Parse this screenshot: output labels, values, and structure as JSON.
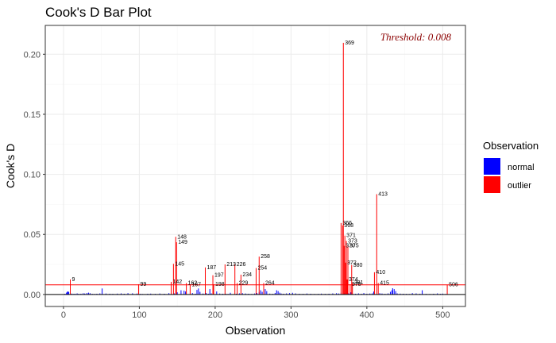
{
  "chart_data": {
    "type": "bar",
    "title": "Cook's D Bar Plot",
    "xlabel": "Observation",
    "ylabel": "Cook's D",
    "xlim": [
      -24,
      530
    ],
    "ylim": [
      -0.01,
      0.224
    ],
    "x_ticks": [
      0,
      100,
      200,
      300,
      400,
      500
    ],
    "y_ticks": [
      0.0,
      0.05,
      0.1,
      0.15,
      0.2
    ],
    "y_tick_labels": [
      "0.00",
      "0.05",
      "0.10",
      "0.15",
      "0.20"
    ],
    "grid": true,
    "threshold": {
      "value": 0.008,
      "label": "Threshold: 0.008",
      "color": "#ff0000",
      "label_color": "#8b0000"
    },
    "legend": {
      "title": "Observation",
      "position": "right",
      "entries": [
        {
          "label": "normal",
          "color": "#0000ff"
        },
        {
          "label": "outlier",
          "color": "#ff0000"
        }
      ]
    },
    "colors": {
      "normal": "#0000ff",
      "outlier": "#ff0000",
      "grid_major": "#ebebeb",
      "grid_minor": "#f5f5f5",
      "panel_border": "#333333"
    },
    "normal_bars": {
      "x": [
        2,
        4,
        5,
        6,
        7,
        11,
        13,
        15,
        18,
        20,
        23,
        26,
        28,
        31,
        33,
        35,
        38,
        41,
        44,
        48,
        51,
        56,
        61,
        65,
        71,
        76,
        80,
        85,
        91,
        97,
        101,
        104,
        111,
        115,
        121,
        127,
        133,
        139,
        146,
        150,
        155,
        159,
        161,
        170,
        174,
        176,
        178,
        180,
        184,
        188,
        191,
        193,
        195,
        202,
        206,
        210,
        214,
        217,
        220,
        228,
        232,
        236,
        240,
        244,
        248,
        252,
        255,
        258,
        260,
        262,
        266,
        268,
        272,
        276,
        279,
        281,
        283,
        285,
        287,
        290,
        294,
        298,
        302,
        306,
        311,
        316,
        321,
        326,
        331,
        336,
        340,
        345,
        350,
        355,
        360,
        363,
        366,
        371,
        376,
        379,
        385,
        389,
        393,
        396,
        400,
        404,
        407,
        409,
        417,
        420,
        424,
        428,
        431,
        433,
        434,
        436,
        438,
        440,
        444,
        448,
        452,
        456,
        460,
        465,
        470,
        473,
        478,
        483,
        488,
        493,
        497,
        500,
        504
      ],
      "values": [
        0.0006,
        0.0015,
        0.0022,
        0.0025,
        0.0021,
        0.0007,
        0.0004,
        0.0006,
        0.0009,
        0.0005,
        0.0006,
        0.001,
        0.0008,
        0.0012,
        0.0015,
        0.0011,
        0.0005,
        0.0004,
        0.0006,
        0.0009,
        0.005,
        0.0008,
        0.0006,
        0.0005,
        0.0007,
        0.0009,
        0.0006,
        0.0011,
        0.001,
        0.0008,
        0.0005,
        0.0004,
        0.0006,
        0.0007,
        0.0005,
        0.0008,
        0.0006,
        0.0011,
        0.0009,
        0.0018,
        0.0035,
        0.0032,
        0.0025,
        0.0012,
        0.0006,
        0.0038,
        0.005,
        0.0022,
        0.0008,
        0.0012,
        0.0006,
        0.0045,
        0.0009,
        0.0025,
        0.0008,
        0.0006,
        0.0005,
        0.0004,
        0.0014,
        0.0006,
        0.0009,
        0.0011,
        0.0008,
        0.0006,
        0.0004,
        0.0008,
        0.0012,
        0.0018,
        0.0035,
        0.0022,
        0.0045,
        0.0028,
        0.0007,
        0.0005,
        0.0012,
        0.0035,
        0.0028,
        0.0015,
        0.0008,
        0.0006,
        0.0009,
        0.0011,
        0.0014,
        0.0009,
        0.0006,
        0.0005,
        0.0008,
        0.0006,
        0.0004,
        0.0005,
        0.0007,
        0.0005,
        0.0006,
        0.0009,
        0.0011,
        0.0008,
        0.0015,
        0.0012,
        0.0009,
        0.0018,
        0.0006,
        0.0009,
        0.0005,
        0.0012,
        0.0006,
        0.0008,
        0.0009,
        0.0024,
        0.0011,
        0.0008,
        0.0005,
        0.0009,
        0.0022,
        0.0035,
        0.0052,
        0.0045,
        0.0028,
        0.0009,
        0.0007,
        0.0006,
        0.0005,
        0.0004,
        0.0011,
        0.0009,
        0.0006,
        0.0035,
        0.0005,
        0.0004,
        0.0006,
        0.0009,
        0.0005,
        0.0007,
        0.0004
      ]
    },
    "outlier_bars": [
      {
        "label": "9",
        "x": 9,
        "value": 0.0125
      },
      {
        "label": "99",
        "x": 99,
        "value": 0.0085
      },
      {
        "label": "142",
        "x": 142,
        "value": 0.0105
      },
      {
        "label": "145",
        "x": 145,
        "value": 0.0255
      },
      {
        "label": "148",
        "x": 148,
        "value": 0.048
      },
      {
        "label": "149",
        "x": 149,
        "value": 0.0435
      },
      {
        "label": "162",
        "x": 162,
        "value": 0.0095
      },
      {
        "label": "167",
        "x": 167,
        "value": 0.0082
      },
      {
        "label": "187",
        "x": 187,
        "value": 0.0225
      },
      {
        "label": "197",
        "x": 197,
        "value": 0.016
      },
      {
        "label": "198",
        "x": 198,
        "value": 0.0085
      },
      {
        "label": "213",
        "x": 213,
        "value": 0.025
      },
      {
        "label": "226",
        "x": 226,
        "value": 0.025
      },
      {
        "label": "229",
        "x": 229,
        "value": 0.0095
      },
      {
        "label": "234",
        "x": 234,
        "value": 0.0165
      },
      {
        "label": "254",
        "x": 254,
        "value": 0.022
      },
      {
        "label": "258",
        "x": 258,
        "value": 0.0315
      },
      {
        "label": "264",
        "x": 264,
        "value": 0.0095
      },
      {
        "label": "366",
        "x": 366,
        "value": 0.0595
      },
      {
        "label": "368",
        "x": 368,
        "value": 0.0575
      },
      {
        "label": "369",
        "x": 369,
        "value": 0.2095
      },
      {
        "label": "370",
        "x": 370,
        "value": 0.0405
      },
      {
        "label": "371",
        "x": 371,
        "value": 0.049
      },
      {
        "label": "372",
        "x": 372,
        "value": 0.0265
      },
      {
        "label": "373",
        "x": 373,
        "value": 0.0445
      },
      {
        "label": "374",
        "x": 374,
        "value": 0.0125
      },
      {
        "label": "375",
        "x": 375,
        "value": 0.0405
      },
      {
        "label": "378",
        "x": 378,
        "value": 0.0085
      },
      {
        "label": "380",
        "x": 380,
        "value": 0.0245
      },
      {
        "label": "381",
        "x": 381,
        "value": 0.0098
      },
      {
        "label": "410",
        "x": 410,
        "value": 0.0185
      },
      {
        "label": "413",
        "x": 413,
        "value": 0.0835
      },
      {
        "label": "415",
        "x": 415,
        "value": 0.0095
      },
      {
        "label": "506",
        "x": 506,
        "value": 0.0082
      }
    ]
  }
}
